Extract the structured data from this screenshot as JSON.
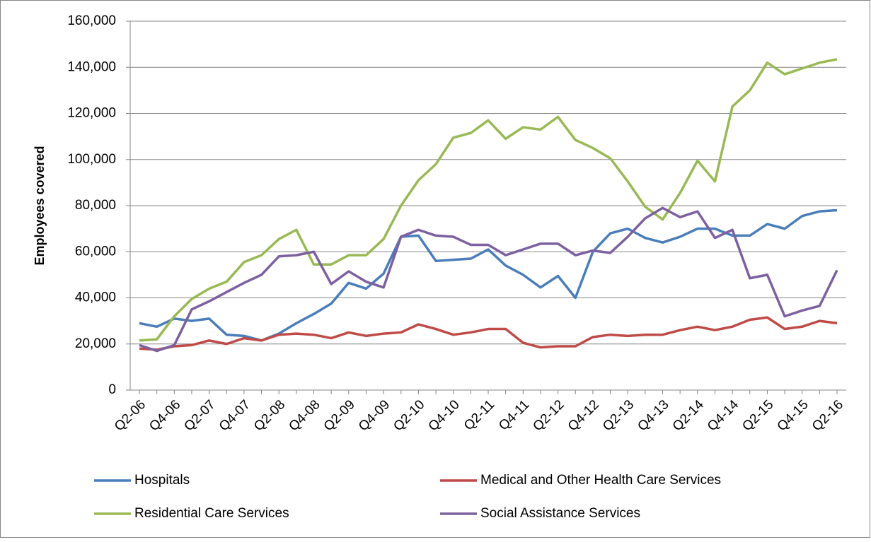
{
  "chart_data": {
    "type": "line",
    "y_label": "Employees covered",
    "categories": [
      "Q2-06",
      null,
      "Q4-06",
      null,
      "Q2-07",
      null,
      "Q4-07",
      null,
      "Q2-08",
      null,
      "Q4-08",
      null,
      "Q2-09",
      null,
      "Q4-09",
      null,
      "Q2-10",
      null,
      "Q4-10",
      null,
      "Q2-11",
      null,
      "Q4-11",
      null,
      "Q2-12",
      null,
      "Q4-12",
      null,
      "Q2-13",
      null,
      "Q4-13",
      null,
      "Q2-14",
      null,
      "Q4-14",
      null,
      "Q2-15",
      null,
      "Q4-15",
      null,
      "Q2-16"
    ],
    "ylim": [
      0,
      160000
    ],
    "yticks": [
      0,
      {
        "value": 20000,
        "label": "20,000"
      },
      {
        "value": 40000,
        "label": "40,000"
      },
      {
        "value": 60000,
        "label": "60,000"
      },
      {
        "value": 80000,
        "label": "80,000"
      },
      {
        "value": 100000,
        "label": "100,000"
      },
      {
        "value": 120000,
        "label": "120,000"
      },
      {
        "value": 140000,
        "label": "140,000"
      },
      {
        "value": 160000,
        "label": "160,000"
      }
    ],
    "grid": true,
    "legend": "bottom",
    "series": [
      {
        "name": "Hospitals",
        "color": "#4a7ebb",
        "values": [
          29000,
          27500,
          31000,
          30000,
          31000,
          24000,
          23500,
          21500,
          24500,
          29000,
          33000,
          37500,
          46500,
          44000,
          50500,
          66500,
          67000,
          56000,
          56500,
          57000,
          61000,
          54000,
          50000,
          44500,
          49500,
          40000,
          60000,
          68000,
          70000,
          66000,
          64000,
          66500,
          70000,
          70000,
          67000,
          67000,
          72000,
          70000,
          75500,
          77500,
          78000
        ]
      },
      {
        "name": "Medical and Other Health Care Services",
        "color": "#be4b48",
        "values": [
          18000,
          17500,
          19000,
          19500,
          21500,
          20000,
          22500,
          21500,
          24000,
          24500,
          24000,
          22500,
          25000,
          23500,
          24500,
          25000,
          28500,
          26500,
          24000,
          25000,
          26500,
          26500,
          20500,
          18500,
          19000,
          19000,
          23000,
          24000,
          23500,
          24000,
          24000,
          26000,
          27500,
          26000,
          27500,
          30500,
          31500,
          26500,
          27500,
          30000,
          29000
        ]
      },
      {
        "name": "Residential Care Services",
        "color": "#98b954",
        "values": [
          21500,
          22000,
          32000,
          39500,
          44000,
          47000,
          55500,
          58500,
          65500,
          69500,
          54500,
          54500,
          58500,
          58500,
          65500,
          80000,
          91000,
          98000,
          109500,
          111500,
          117000,
          109000,
          114000,
          113000,
          118500,
          108500,
          105000,
          100500,
          90500,
          79500,
          74000,
          85500,
          99500,
          90500,
          123000,
          130000,
          142000,
          137000,
          139500,
          142000,
          143500
        ]
      },
      {
        "name": "Social Assistance Services",
        "color": "#7d60a0",
        "values": [
          19500,
          17000,
          19500,
          35000,
          38500,
          42500,
          46500,
          50000,
          58000,
          58500,
          60000,
          46000,
          51500,
          47000,
          44500,
          66500,
          69500,
          67000,
          66500,
          63000,
          63000,
          58500,
          61000,
          63500,
          63500,
          58500,
          60500,
          59500,
          66500,
          74500,
          79000,
          75000,
          77500,
          66000,
          69500,
          48500,
          50000,
          32000,
          34500,
          36500,
          52000
        ]
      }
    ]
  }
}
